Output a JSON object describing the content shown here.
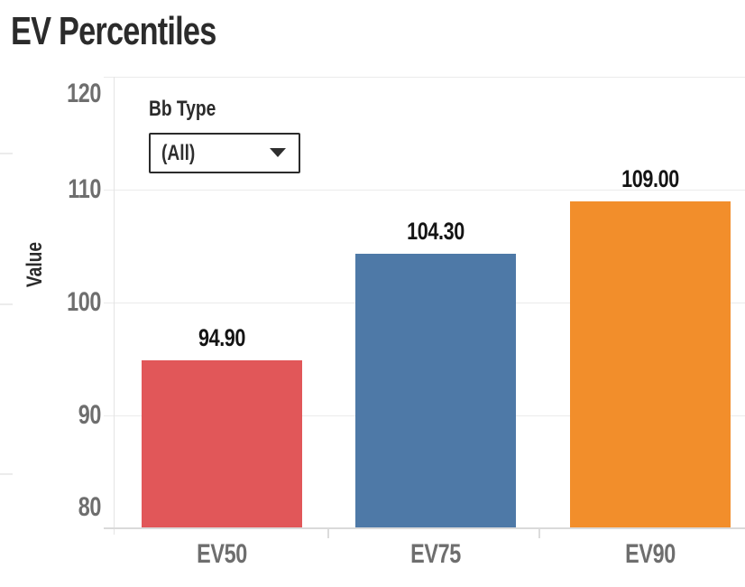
{
  "filter": {
    "label": "Bb Type",
    "value": "(All)",
    "icon": "caret-down-icon"
  },
  "chart_data": {
    "type": "bar",
    "title": "EV Percentiles",
    "categories": [
      "EV50",
      "EV75",
      "EV90"
    ],
    "values": [
      94.9,
      104.3,
      109.0
    ],
    "value_labels": [
      "94.90",
      "104.30",
      "109.00"
    ],
    "bar_colors": [
      "#e15759",
      "#4e79a7",
      "#f28e2b"
    ],
    "xlabel": "",
    "ylabel": "Value",
    "ylim": [
      80,
      120
    ],
    "yticks": [
      120,
      110,
      100,
      90,
      80
    ],
    "grid": true,
    "legend": false,
    "label_position": "above-bars",
    "tick_label_color": "#6e6e6e",
    "value_label_color": "#141414",
    "title_color": "#2b2b2b"
  }
}
